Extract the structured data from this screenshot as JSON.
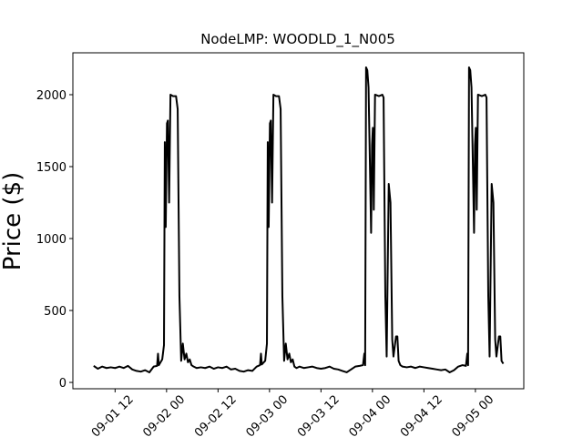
{
  "chart_data": {
    "type": "line",
    "title": "NodeLMP: WOODLD_1_N005",
    "y_label": "Price ($)",
    "color": "#000000",
    "x": [
      1.292,
      1.333,
      1.375,
      1.417,
      1.458,
      1.5,
      1.542,
      1.583,
      1.625,
      1.667,
      1.708,
      1.75,
      1.792,
      1.833,
      1.875,
      1.908,
      1.917,
      1.925,
      1.958,
      1.975,
      1.983,
      1.992,
      2.004,
      2.013,
      2.025,
      2.038,
      2.063,
      2.092,
      2.108,
      2.125,
      2.142,
      2.158,
      2.175,
      2.192,
      2.208,
      2.225,
      2.242,
      2.263,
      2.292,
      2.333,
      2.375,
      2.417,
      2.458,
      2.5,
      2.542,
      2.583,
      2.625,
      2.667,
      2.708,
      2.75,
      2.792,
      2.833,
      2.875,
      2.908,
      2.917,
      2.925,
      2.958,
      2.975,
      2.983,
      2.992,
      3.004,
      3.013,
      3.025,
      3.038,
      3.063,
      3.092,
      3.108,
      3.125,
      3.142,
      3.158,
      3.175,
      3.192,
      3.208,
      3.225,
      3.242,
      3.263,
      3.292,
      3.333,
      3.375,
      3.417,
      3.458,
      3.5,
      3.542,
      3.583,
      3.625,
      3.667,
      3.708,
      3.75,
      3.792,
      3.833,
      3.875,
      3.908,
      3.921,
      3.929,
      3.938,
      3.95,
      3.962,
      3.975,
      3.987,
      3.996,
      4.004,
      4.013,
      4.025,
      4.063,
      4.096,
      4.108,
      4.125,
      4.138,
      4.158,
      4.175,
      4.192,
      4.204,
      4.229,
      4.242,
      4.254,
      4.271,
      4.292,
      4.333,
      4.375,
      4.417,
      4.458,
      4.5,
      4.542,
      4.583,
      4.625,
      4.667,
      4.708,
      4.75,
      4.792,
      4.833,
      4.875,
      4.908,
      4.921,
      4.929,
      4.938,
      4.95,
      4.962,
      4.975,
      4.987,
      4.996,
      5.004,
      5.013,
      5.025,
      5.063,
      5.096,
      5.108,
      5.125,
      5.138,
      5.158,
      5.175,
      5.192,
      5.204,
      5.229,
      5.242,
      5.254,
      5.271
    ],
    "values": [
      115,
      95,
      110,
      100,
      105,
      100,
      110,
      100,
      115,
      90,
      80,
      75,
      85,
      70,
      110,
      115,
      200,
      120,
      160,
      260,
      1670,
      1080,
      1800,
      1820,
      1250,
      2000,
      1990,
      1990,
      1900,
      600,
      150,
      270,
      160,
      200,
      140,
      160,
      120,
      110,
      100,
      105,
      100,
      110,
      95,
      105,
      100,
      110,
      90,
      95,
      80,
      75,
      85,
      80,
      110,
      120,
      200,
      125,
      150,
      270,
      1670,
      1080,
      1800,
      1820,
      1250,
      2000,
      1990,
      1990,
      1900,
      600,
      150,
      270,
      160,
      200,
      140,
      160,
      110,
      100,
      110,
      100,
      105,
      110,
      100,
      95,
      100,
      110,
      95,
      90,
      80,
      70,
      90,
      110,
      115,
      120,
      200,
      120,
      2190,
      2170,
      2050,
      1530,
      1040,
      1650,
      1770,
      1200,
      2000,
      1990,
      2000,
      1980,
      600,
      180,
      1380,
      1250,
      300,
      180,
      320,
      320,
      150,
      120,
      110,
      105,
      110,
      100,
      110,
      105,
      100,
      95,
      90,
      85,
      90,
      70,
      85,
      110,
      120,
      115,
      200,
      120,
      2190,
      2170,
      2050,
      1530,
      1040,
      1650,
      1770,
      1200,
      2000,
      1990,
      2000,
      1980,
      600,
      180,
      1380,
      1250,
      300,
      180,
      320,
      320,
      150,
      130
    ],
    "xlim": [
      1.09,
      5.47
    ],
    "ylim": [
      -44,
      2291
    ],
    "xticks": [
      {
        "value": 1.5,
        "label": "09-01 12"
      },
      {
        "value": 2,
        "label": "09-02 00"
      },
      {
        "value": 2.5,
        "label": "09-02 12"
      },
      {
        "value": 3,
        "label": "09-03 00"
      },
      {
        "value": 3.5,
        "label": "09-03 12"
      },
      {
        "value": 4,
        "label": "09-04 00"
      },
      {
        "value": 4.5,
        "label": "09-04 12"
      },
      {
        "value": 5,
        "label": "09-05 00"
      }
    ],
    "yticks": [
      0,
      500,
      1000,
      1500,
      2000
    ]
  }
}
